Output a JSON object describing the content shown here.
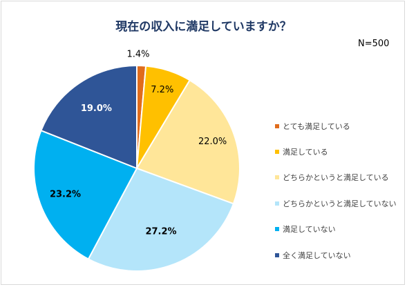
{
  "chart_data": {
    "type": "pie",
    "title": "現在の収入に満足していますか？",
    "annotation": "N=500",
    "legend_position": "right",
    "slices": [
      {
        "label": "とても満足している",
        "value": 1.4,
        "display": "1.4%",
        "color": "#e06c1c"
      },
      {
        "label": "満足している",
        "value": 7.2,
        "display": "7.2%",
        "color": "#ffc000"
      },
      {
        "label": "どちらかというと満足している",
        "value": 22.0,
        "display": "22.0%",
        "color": "#ffe699"
      },
      {
        "label": "どちらかというと満足していない",
        "value": 27.2,
        "display": "27.2%",
        "color": "#b4e5fa"
      },
      {
        "label": "満足していない",
        "value": 23.2,
        "display": "23.2%",
        "color": "#00b0f0"
      },
      {
        "label": "全く満足していない",
        "value": 19.0,
        "display": "19.0%",
        "color": "#2f5597"
      }
    ]
  }
}
